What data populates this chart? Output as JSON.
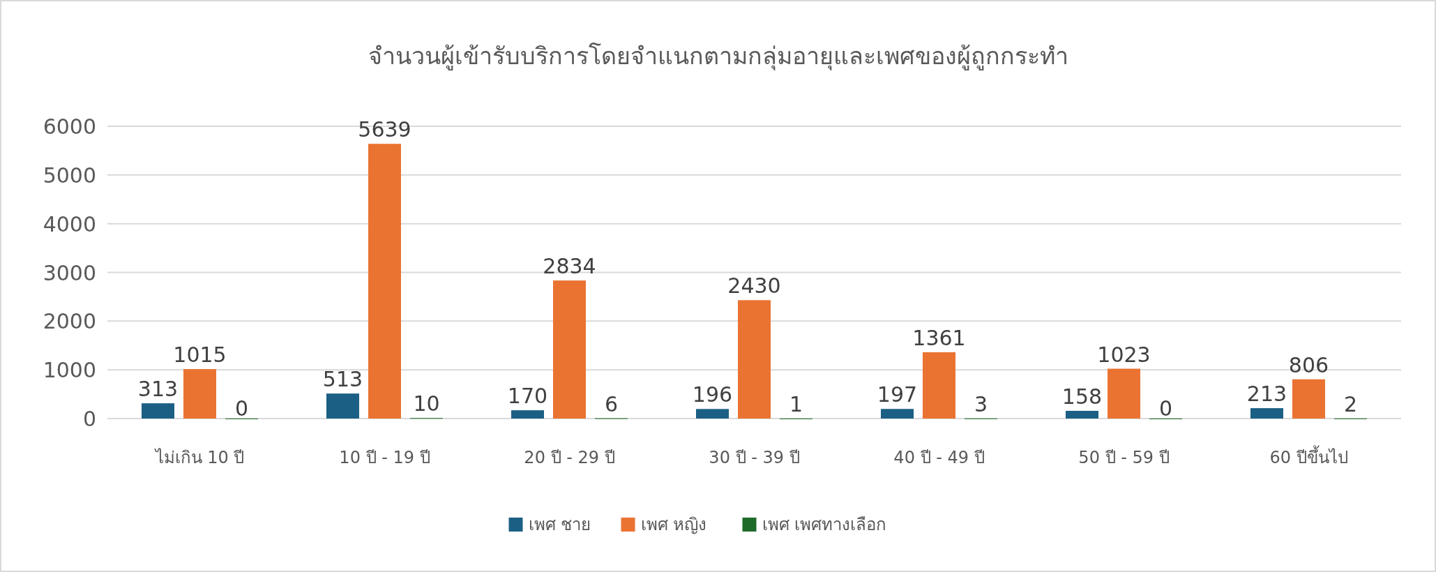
{
  "chart_data": {
    "type": "bar",
    "title": "จำนวนผู้เข้ารับบริการโดยจำแนกตามกลุ่มอายุและเพศของผู้ถูกกระทำ",
    "categories": [
      "ไม่เกิน 10 ปี",
      "10 ปี - 19 ปี",
      "20 ปี - 29 ปี",
      "30 ปี - 39 ปี",
      "40 ปี - 49 ปี",
      "50 ปี - 59 ปี",
      "60 ปีขึ้นไป"
    ],
    "series": [
      {
        "name": "เพศ ชาย",
        "color": "#1b5f85",
        "values": [
          313,
          513,
          170,
          196,
          197,
          158,
          213
        ]
      },
      {
        "name": "เพศ หญิง",
        "color": "#ea7332",
        "values": [
          1015,
          5639,
          2834,
          2430,
          1361,
          1023,
          806
        ]
      },
      {
        "name": "เพศ เพศทางเลือก",
        "color": "#1e6b2a",
        "values": [
          0,
          10,
          6,
          1,
          3,
          0,
          2
        ]
      }
    ],
    "ylim": [
      0,
      6000
    ],
    "yticks": [
      0,
      1000,
      2000,
      3000,
      4000,
      5000,
      6000
    ],
    "grid": "y",
    "legend": "bottom",
    "data_labels": true
  }
}
